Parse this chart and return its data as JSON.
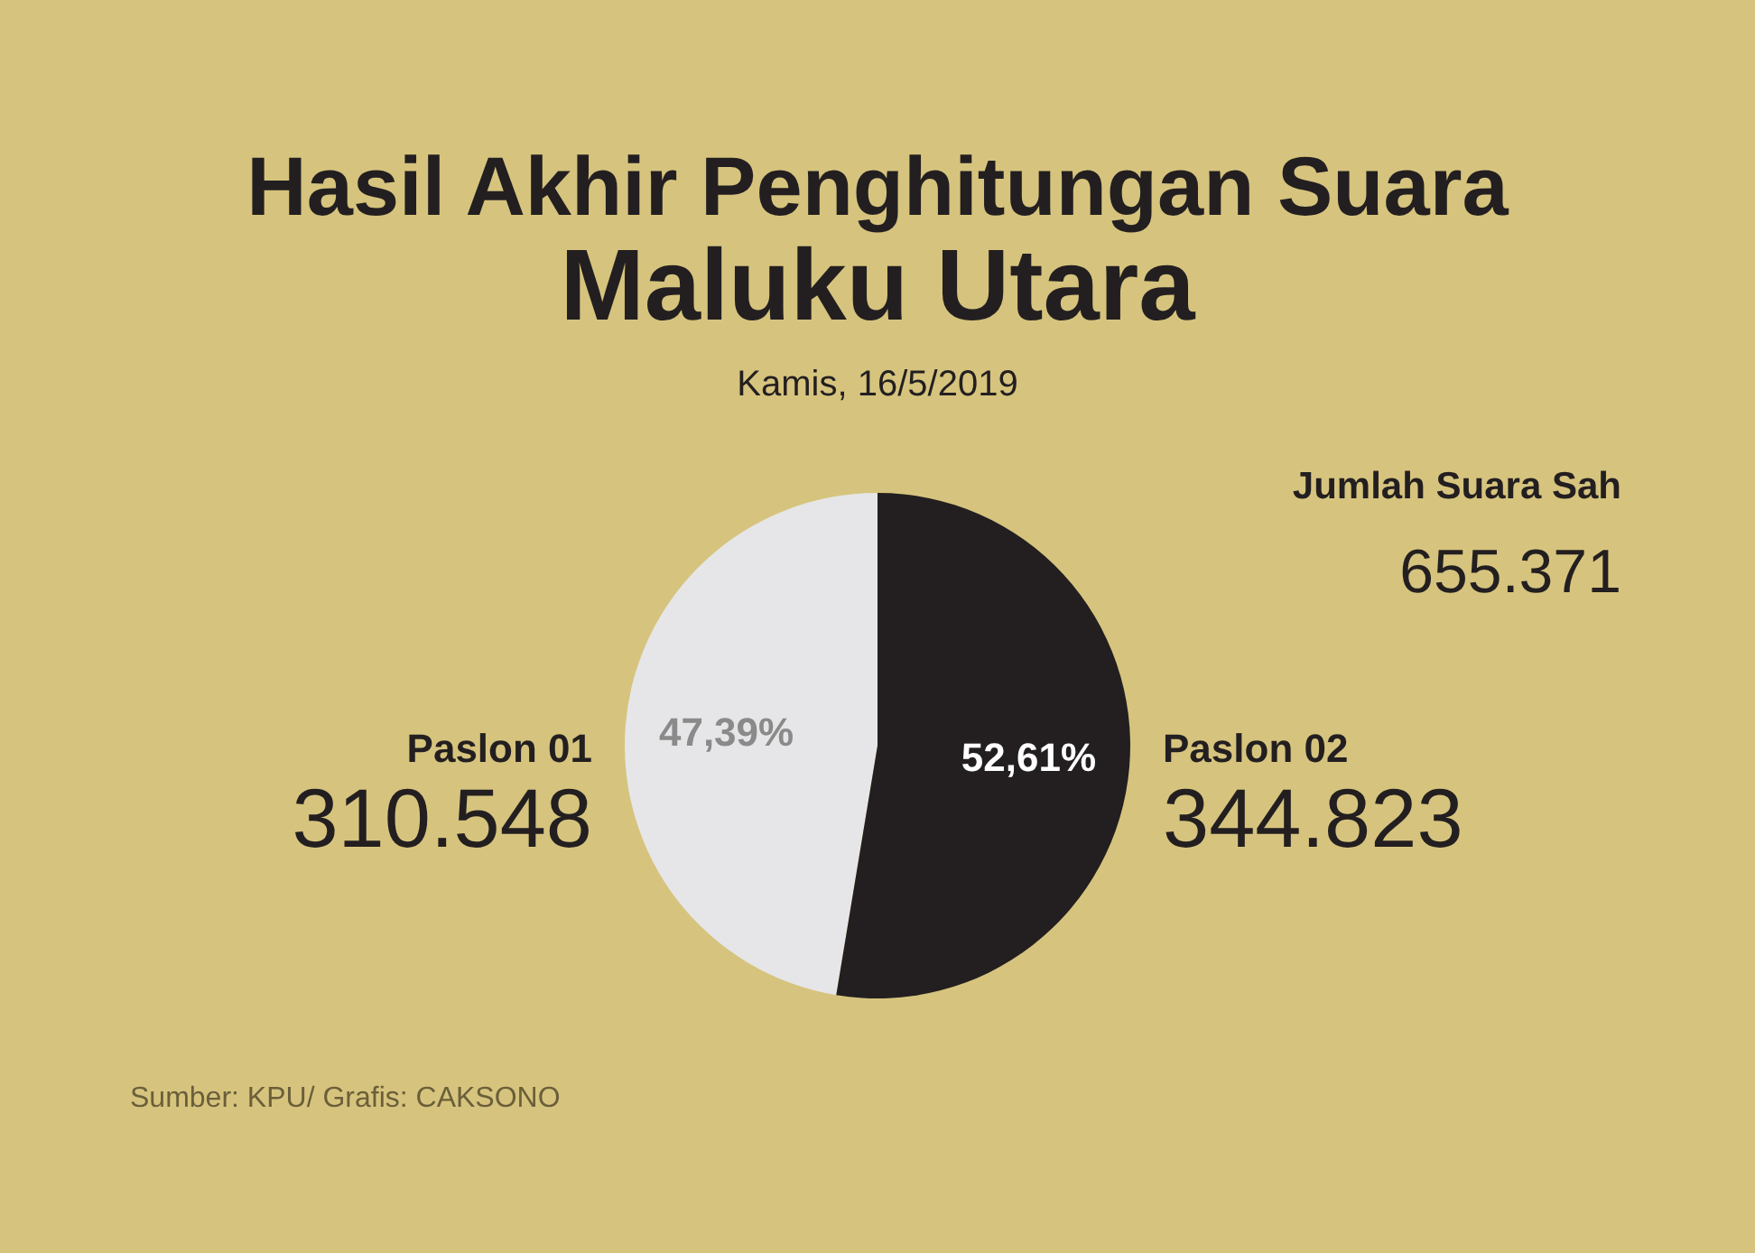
{
  "chart_data": {
    "type": "pie",
    "title": "Hasil Akhir Penghitungan Suara",
    "subtitle": "Maluku Utara",
    "categories": [
      "Paslon 01",
      "Paslon 02"
    ],
    "values": [
      47.39,
      52.61
    ],
    "colors": [
      "#e6e6e8",
      "#231f20"
    ],
    "value_labels": [
      "47,39%",
      "52,61%"
    ],
    "annotations": [
      "Kamis, 16/5/2019",
      "310.548",
      "344.823",
      "Jumlah Suara Sah",
      "655.371",
      "Sumber: KPU/ Grafis: CAKSONO"
    ]
  }
}
